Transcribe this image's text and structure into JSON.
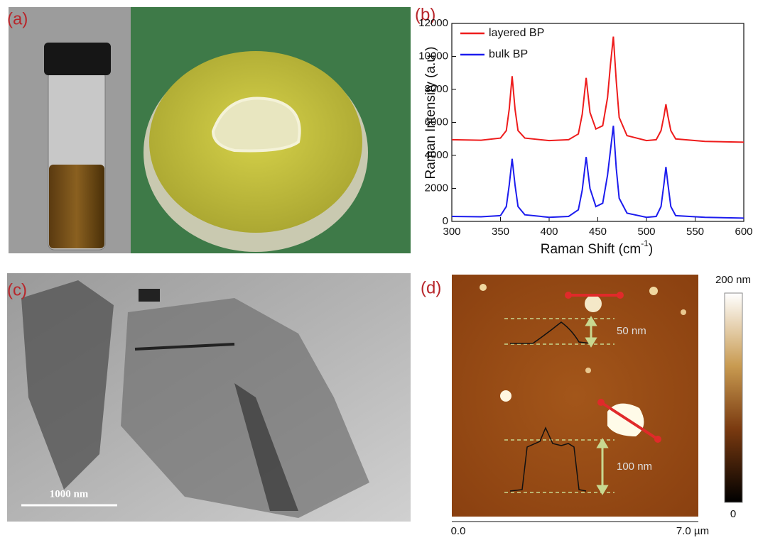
{
  "chart_data": {
    "type": "line",
    "x_label": "Raman Shift  (cm",
    "x_label_sup": "-1",
    "x_label_end": ")",
    "y_label": "Raman Intensity (a.u.)",
    "x": [
      300,
      330,
      350,
      356,
      359,
      362,
      365,
      368,
      375,
      400,
      420,
      430,
      434,
      438,
      442,
      448,
      455,
      460,
      463,
      466,
      469,
      472,
      480,
      500,
      510,
      515,
      518,
      520,
      522,
      525,
      530,
      560,
      600
    ],
    "series": [
      {
        "name": "layered BP",
        "color": "#ee1c1c",
        "values": [
          4950,
          4920,
          5050,
          5500,
          6800,
          8800,
          6800,
          5500,
          5050,
          4900,
          4950,
          5300,
          6500,
          8700,
          6600,
          5600,
          5800,
          7500,
          9500,
          11200,
          8500,
          6300,
          5200,
          4900,
          4950,
          5500,
          6400,
          7100,
          6400,
          5500,
          5000,
          4850,
          4800
        ]
      },
      {
        "name": "bulk BP",
        "color": "#1c1cee",
        "values": [
          300,
          280,
          350,
          900,
          2200,
          3800,
          2200,
          900,
          400,
          250,
          300,
          700,
          1900,
          3900,
          2000,
          900,
          1100,
          2800,
          4300,
          5800,
          3200,
          1400,
          500,
          250,
          300,
          900,
          2300,
          3300,
          2300,
          900,
          350,
          250,
          200
        ]
      }
    ],
    "xlim": [
      300,
      600
    ],
    "xticks": [
      300,
      350,
      400,
      450,
      500,
      550,
      600
    ],
    "ylim": [
      0,
      12000
    ],
    "yticks": [
      0,
      2000,
      4000,
      6000,
      8000,
      10000,
      12000
    ],
    "legend": "upper-left"
  },
  "panels": {
    "a": "(a)",
    "b": "(b)",
    "c": "(c)",
    "d": "(d)"
  },
  "tem": {
    "scale_bar": "1000 nm"
  },
  "afm": {
    "profile_top": "50 nm",
    "profile_bottom": "100 nm",
    "colorbar_max": "200 nm",
    "colorbar_min": "0",
    "x_start": "0.0",
    "x_end": "7.0 µm"
  }
}
